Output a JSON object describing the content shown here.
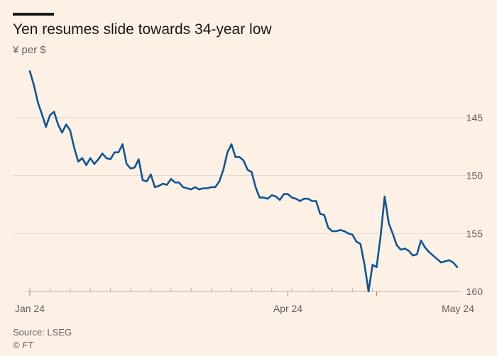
{
  "header": {
    "title": "Yen resumes slide towards 34-year low",
    "subtitle": "¥ per $"
  },
  "footer": {
    "source": "Source: LSEG",
    "credit": "© FT"
  },
  "colors": {
    "background": "#fdf1e6",
    "line": "#0f5499",
    "grid": "#e6d9ce",
    "text": "#66605c"
  },
  "chart_data": {
    "type": "line",
    "title": "Yen resumes slide towards 34-year low",
    "ylabel": "¥ per $",
    "xlabel": "",
    "y_inverted": true,
    "ylim": [
      141,
      160
    ],
    "y_ticks": [
      145,
      150,
      155,
      160
    ],
    "y_tick_labels": [
      "145",
      "150",
      "155",
      "160"
    ],
    "x_ticks": [
      0,
      64,
      86
    ],
    "x_tick_labels": [
      "Jan 24",
      "Apr 24",
      "May 24"
    ],
    "x_minor_ticks": [
      0,
      5,
      10,
      15,
      20,
      25,
      30,
      35,
      40,
      45,
      50,
      55,
      60,
      65,
      70,
      75,
      80,
      85
    ],
    "series": [
      {
        "name": "¥ per $",
        "x": [
          0,
          1,
          2,
          3,
          4,
          5,
          6,
          7,
          8,
          9,
          10,
          11,
          12,
          13,
          14,
          15,
          16,
          17,
          18,
          19,
          20,
          21,
          22,
          23,
          24,
          25,
          26,
          27,
          28,
          29,
          30,
          31,
          32,
          33,
          34,
          35,
          36,
          37,
          38,
          39,
          40,
          41,
          42,
          43,
          44,
          45,
          46,
          47,
          48,
          49,
          50,
          51,
          52,
          53,
          54,
          55,
          56,
          57,
          58,
          59,
          60,
          61,
          62,
          63,
          64,
          65,
          66,
          67,
          68,
          69,
          70,
          71,
          72,
          73,
          74,
          75,
          76,
          77,
          78,
          79,
          80,
          81,
          82,
          83,
          84,
          85,
          86,
          87,
          88,
          89,
          90,
          91,
          92,
          93,
          94,
          95,
          96,
          97,
          98,
          99,
          100,
          101,
          102,
          103,
          104,
          105,
          106
        ],
        "values": [
          141.0,
          142.2,
          143.7,
          144.7,
          145.8,
          144.8,
          144.5,
          145.6,
          146.3,
          145.6,
          146.1,
          147.6,
          148.8,
          148.5,
          149.1,
          148.5,
          149.0,
          148.6,
          148.1,
          148.5,
          148.6,
          148.0,
          148.0,
          147.3,
          149.0,
          149.4,
          149.3,
          148.6,
          150.4,
          150.5,
          149.9,
          151.0,
          150.9,
          150.7,
          150.8,
          150.3,
          150.6,
          150.6,
          151.0,
          151.1,
          151.2,
          151.0,
          151.2,
          151.1,
          151.1,
          151.0,
          151.0,
          150.5,
          149.5,
          148.0,
          147.3,
          148.4,
          148.4,
          148.7,
          149.5,
          149.7,
          151.0,
          151.9,
          151.9,
          152.0,
          151.7,
          151.8,
          152.1,
          151.6,
          151.6,
          151.9,
          152.0,
          152.2,
          152.0,
          152.0,
          152.2,
          152.2,
          153.3,
          153.4,
          154.5,
          154.8,
          154.8,
          154.7,
          154.8,
          155.0,
          155.1,
          155.7,
          155.9,
          157.7,
          160.0,
          157.7,
          157.9,
          155.2,
          151.8,
          154.1,
          155.0,
          156.0,
          156.4,
          156.3,
          156.5,
          156.9,
          156.8,
          155.6,
          156.2,
          156.6,
          156.9,
          157.2,
          157.5,
          157.4,
          157.3,
          157.5,
          157.9
        ]
      }
    ]
  }
}
